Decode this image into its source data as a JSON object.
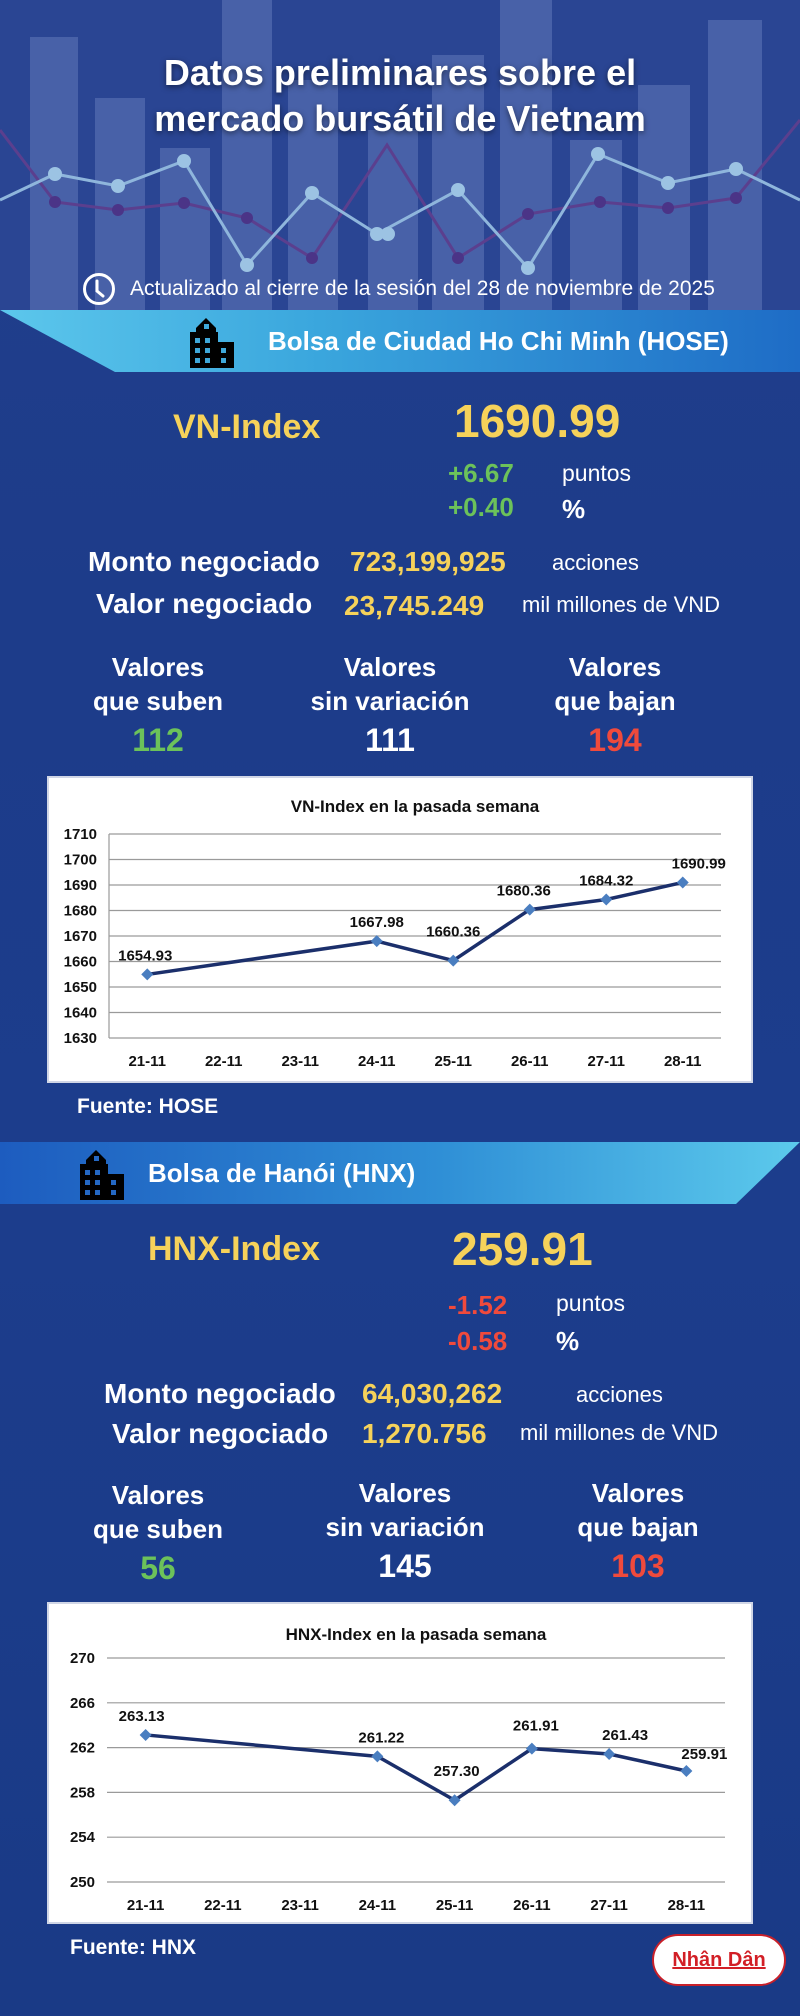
{
  "header": {
    "title_line1": "Datos preliminares sobre el",
    "title_line2": "mercado bursátil de Vietnam",
    "updated": "Actualizado al cierre de la sesión del 28 de noviembre de 2025",
    "icon": "clock-icon"
  },
  "colors": {
    "background": "#1c3d8c",
    "accent_yellow": "#f6d25a",
    "up_green": "#6cc25a",
    "down_red": "#f04a3c",
    "banner_light": "#5cc7ec",
    "banner_dark": "#1e6cc6",
    "chart_line": "#1b2f6b"
  },
  "hose": {
    "banner_title": "Bolsa de Ciudad Ho Chi Minh (HOSE)",
    "icon": "building-icon",
    "index_name": "VN-Index",
    "index_value": "1690.99",
    "change_points": "+6.67",
    "change_points_unit": "puntos",
    "change_percent": "+0.40",
    "change_percent_unit": "%",
    "volume_label": "Monto negociado",
    "volume_value": "723,199,925",
    "volume_unit": "acciones",
    "value_label": "Valor negociado",
    "value_value": "23,745.249",
    "value_unit": "mil millones de VND",
    "stats": [
      {
        "label1": "Valores",
        "label2": "que suben",
        "num": "112"
      },
      {
        "label1": "Valores",
        "label2": "sin variación",
        "num": "111"
      },
      {
        "label1": "Valores",
        "label2": "que bajan",
        "num": "194"
      }
    ],
    "source": "Fuente: HOSE"
  },
  "hnx": {
    "banner_title": "Bolsa de Hanói (HNX)",
    "icon": "building-icon",
    "index_name": "HNX-Index",
    "index_value": "259.91",
    "change_points": "-1.52",
    "change_points_unit": "puntos",
    "change_percent": "-0.58",
    "change_percent_unit": "%",
    "volume_label": "Monto negociado",
    "volume_value": "64,030,262",
    "volume_unit": "acciones",
    "value_label": "Valor negociado",
    "value_value": "1,270.756",
    "value_unit": "mil millones de VND",
    "stats": [
      {
        "label1": "Valores",
        "label2": "que suben",
        "num": "56"
      },
      {
        "label1": "Valores",
        "label2": "sin variación",
        "num": "145"
      },
      {
        "label1": "Valores",
        "label2": "que bajan",
        "num": "103"
      }
    ],
    "source": "Fuente:  HNX"
  },
  "logo": {
    "text": "Nhân Dân"
  },
  "chart_data": [
    {
      "type": "line",
      "title": "VN-Index en la pasada semana",
      "categories": [
        "21-11",
        "22-11",
        "23-11",
        "24-11",
        "25-11",
        "26-11",
        "27-11",
        "28-11"
      ],
      "points": [
        {
          "x": "21-11",
          "y": 1654.93
        },
        {
          "x": "24-11",
          "y": 1667.98
        },
        {
          "x": "25-11",
          "y": 1660.36
        },
        {
          "x": "26-11",
          "y": 1680.36
        },
        {
          "x": "27-11",
          "y": 1684.32
        },
        {
          "x": "28-11",
          "y": 1690.99
        }
      ],
      "labels": [
        "1654.93",
        "1667.98",
        "1660.36",
        "1680.36",
        "1684.32",
        "1690.99"
      ],
      "yticks": [
        "1710",
        "1700",
        "1690",
        "1680",
        "1670",
        "1660",
        "1650",
        "1640",
        "1630"
      ],
      "ylim": [
        1630,
        1710
      ],
      "xlabel": "",
      "ylabel": "",
      "grid": true,
      "legend": "none"
    },
    {
      "type": "line",
      "title": "HNX-Index en la pasada semana",
      "categories": [
        "21-11",
        "22-11",
        "23-11",
        "24-11",
        "25-11",
        "26-11",
        "27-11",
        "28-11"
      ],
      "points": [
        {
          "x": "21-11",
          "y": 263.13
        },
        {
          "x": "24-11",
          "y": 261.22
        },
        {
          "x": "25-11",
          "y": 257.3
        },
        {
          "x": "26-11",
          "y": 261.91
        },
        {
          "x": "27-11",
          "y": 261.43
        },
        {
          "x": "28-11",
          "y": 259.91
        }
      ],
      "labels": [
        "263.13",
        "261.22",
        "257.30",
        "261.91",
        "261.43",
        "259.91"
      ],
      "yticks": [
        "270",
        "266",
        "262",
        "258",
        "254",
        "250"
      ],
      "ylim": [
        250,
        270
      ],
      "xlabel": "",
      "ylabel": "",
      "grid": true,
      "legend": "none"
    }
  ]
}
